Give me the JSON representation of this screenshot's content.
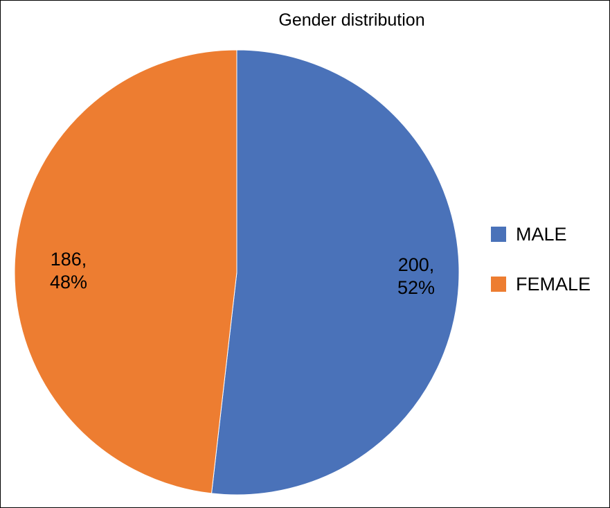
{
  "chart_data": {
    "type": "pie",
    "title": "Gender distribution",
    "slices": [
      {
        "name": "MALE",
        "value": 200,
        "percent": "52%",
        "color": "#4a72b9"
      },
      {
        "name": "FEMALE",
        "value": 186,
        "percent": "48%",
        "color": "#ed7d31"
      }
    ],
    "legend_placement": "right",
    "start_angle": "12 o'clock",
    "direction": "clockwise"
  }
}
